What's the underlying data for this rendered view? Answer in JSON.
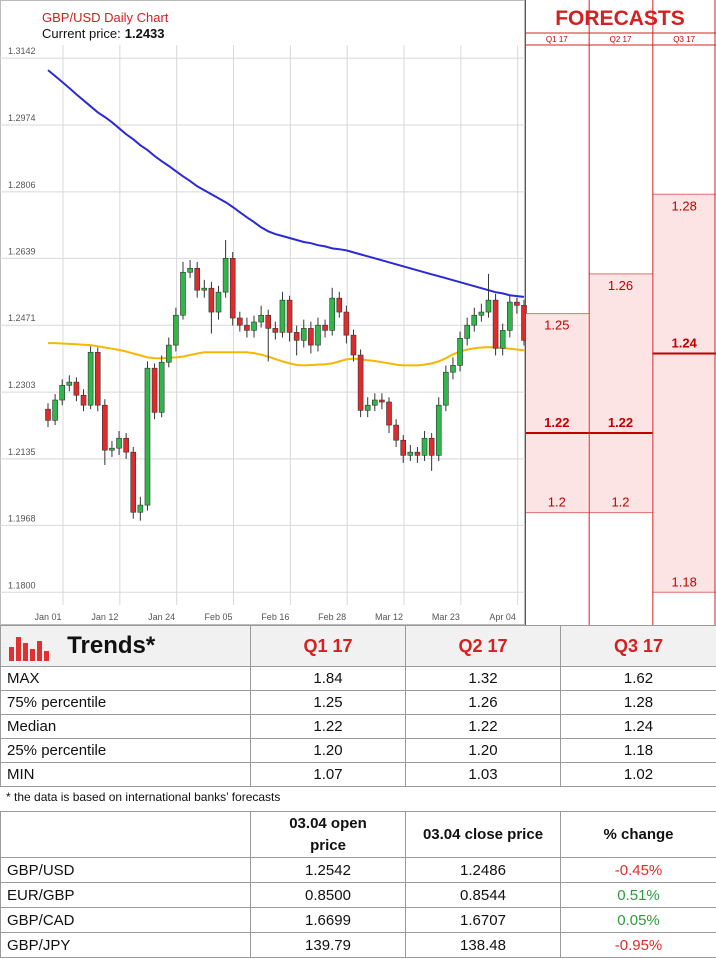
{
  "chart_data": {
    "type": "candlestick",
    "title": "GBP/USD Daily Chart",
    "current_price_label": "Current price:",
    "current_price": 1.2433,
    "categories": [
      "Jan 01",
      null,
      null,
      null,
      null,
      null,
      null,
      null,
      "Jan 12",
      null,
      null,
      null,
      null,
      null,
      null,
      null,
      "Jan 24",
      null,
      null,
      null,
      null,
      null,
      null,
      null,
      "Feb 05",
      null,
      null,
      null,
      null,
      null,
      null,
      null,
      "Feb 16",
      null,
      null,
      null,
      null,
      null,
      null,
      null,
      "Feb 28",
      null,
      null,
      null,
      null,
      null,
      null,
      null,
      "Mar 12",
      null,
      null,
      null,
      null,
      null,
      null,
      null,
      "Mar 23",
      null,
      null,
      null,
      null,
      null,
      null,
      null,
      "Apr 04",
      null,
      null,
      null
    ],
    "open": [
      1.226,
      1.2232,
      1.2283,
      1.232,
      1.2328,
      1.2295,
      1.227,
      1.2403,
      1.227,
      1.2157,
      1.2162,
      1.2187,
      1.2152,
      1.2001,
      1.2019,
      1.2363,
      1.2252,
      1.2378,
      1.2421,
      1.2496,
      1.2604,
      1.2614,
      1.2559,
      1.2564,
      1.2504,
      1.2554,
      1.2639,
      1.2489,
      1.2471,
      1.2458,
      1.2479,
      1.2496,
      1.2463,
      1.2453,
      1.2534,
      1.2453,
      1.2433,
      1.2463,
      1.2421,
      1.2471,
      1.2458,
      1.2539,
      1.2504,
      1.2446,
      1.2396,
      1.2257,
      1.227,
      1.2283,
      1.2278,
      1.222,
      1.2182,
      1.2144,
      1.2152,
      1.2144,
      1.2187,
      1.2144,
      1.227,
      1.2353,
      1.237,
      1.2438,
      1.2471,
      1.2496,
      1.2504,
      1.2534,
      1.2413,
      1.2458,
      1.2529,
      1.2521
    ],
    "high": [
      1.2275,
      1.2298,
      1.2335,
      1.2345,
      1.234,
      1.231,
      1.2418,
      1.2415,
      1.2285,
      1.218,
      1.2205,
      1.22,
      1.2165,
      1.204,
      1.238,
      1.2375,
      1.2395,
      1.244,
      1.2515,
      1.263,
      1.2635,
      1.263,
      1.2585,
      1.258,
      1.257,
      1.2685,
      1.2655,
      1.2505,
      1.249,
      1.2495,
      1.252,
      1.251,
      1.248,
      1.2555,
      1.2545,
      1.247,
      1.2485,
      1.248,
      1.249,
      1.2485,
      1.2565,
      1.2555,
      1.252,
      1.246,
      1.241,
      1.229,
      1.23,
      1.23,
      1.229,
      1.2235,
      1.2195,
      1.217,
      1.2165,
      1.2205,
      1.22,
      1.229,
      1.237,
      1.239,
      1.2455,
      1.249,
      1.2515,
      1.2525,
      1.26,
      1.255,
      1.2475,
      1.2545,
      1.254,
      1.2535
    ],
    "low": [
      1.2215,
      1.222,
      1.227,
      1.2305,
      1.228,
      1.2255,
      1.226,
      1.2255,
      1.212,
      1.214,
      1.2145,
      1.2135,
      1.1985,
      1.198,
      1.2005,
      1.2235,
      1.224,
      1.2365,
      1.2405,
      1.2485,
      1.259,
      1.254,
      1.254,
      1.245,
      1.2485,
      1.254,
      1.247,
      1.2455,
      1.244,
      1.244,
      1.2465,
      1.238,
      1.2435,
      1.244,
      1.243,
      1.2395,
      1.2415,
      1.24,
      1.2405,
      1.244,
      1.2445,
      1.249,
      1.2425,
      1.238,
      1.224,
      1.224,
      1.2255,
      1.226,
      1.22,
      1.2165,
      1.2125,
      1.213,
      1.2125,
      1.213,
      1.2105,
      1.213,
      1.2255,
      1.2335,
      1.2355,
      1.242,
      1.2455,
      1.248,
      1.249,
      1.2395,
      1.2395,
      1.244,
      1.25,
      1.242
    ],
    "close": [
      1.2232,
      1.2283,
      1.232,
      1.2328,
      1.2295,
      1.227,
      1.2403,
      1.227,
      1.2157,
      1.2162,
      1.2187,
      1.2152,
      1.2001,
      1.2019,
      1.2363,
      1.2252,
      1.2378,
      1.2421,
      1.2496,
      1.2604,
      1.2614,
      1.2559,
      1.2564,
      1.2504,
      1.2554,
      1.2639,
      1.2489,
      1.2471,
      1.2458,
      1.2479,
      1.2496,
      1.2463,
      1.2453,
      1.2534,
      1.2453,
      1.2433,
      1.2463,
      1.2421,
      1.2471,
      1.2458,
      1.2539,
      1.2504,
      1.2446,
      1.2396,
      1.2257,
      1.227,
      1.2283,
      1.2278,
      1.222,
      1.2182,
      1.2144,
      1.2152,
      1.2144,
      1.2187,
      1.2144,
      1.227,
      1.2353,
      1.237,
      1.2438,
      1.2471,
      1.2496,
      1.2504,
      1.2534,
      1.2413,
      1.2458,
      1.2529,
      1.2521,
      1.2433
    ],
    "up_color": "#2fb84a",
    "down_color": "#e02b2b",
    "lines": [
      {
        "color": "#2a2ad8",
        "values": [
          1.3112,
          1.3097,
          1.3082,
          1.3067,
          1.3051,
          1.3036,
          1.3021,
          1.3006,
          1.2994,
          1.2981,
          1.2966,
          1.2951,
          1.2938,
          1.2923,
          1.2911,
          1.2896,
          1.2883,
          1.2871,
          1.2858,
          1.2845,
          1.2833,
          1.282,
          1.281,
          1.28,
          1.279,
          1.278,
          1.2768,
          1.2755,
          1.2742,
          1.273,
          1.2717,
          1.2707,
          1.27,
          1.2695,
          1.269,
          1.2685,
          1.268,
          1.2677,
          1.2672,
          1.2669,
          1.2664,
          1.2662,
          1.2659,
          1.2654,
          1.2649,
          1.2644,
          1.2639,
          1.2634,
          1.2629,
          1.2624,
          1.2619,
          1.2614,
          1.2609,
          1.2604,
          1.2599,
          1.2594,
          1.2589,
          1.2584,
          1.2579,
          1.2574,
          1.2569,
          1.2564,
          1.2559,
          1.2554,
          1.2551,
          1.2546,
          1.2544,
          1.2542
        ]
      },
      {
        "color": "#f5b800",
        "values": [
          1.2426,
          1.2426,
          1.2425,
          1.2424,
          1.2423,
          1.2422,
          1.2421,
          1.2418,
          1.2415,
          1.2412,
          1.2409,
          1.2405,
          1.24,
          1.2395,
          1.239,
          1.2388,
          1.2388,
          1.2389,
          1.239,
          1.2392,
          1.2396,
          1.24,
          1.2403,
          1.2403,
          1.2403,
          1.2403,
          1.2403,
          1.2403,
          1.2403,
          1.2401,
          1.2397,
          1.2392,
          1.2386,
          1.238,
          1.2375,
          1.2371,
          1.237,
          1.2371,
          1.2372,
          1.2373,
          1.2375,
          1.238,
          1.2385,
          1.2387,
          1.2385,
          1.2383,
          1.2381,
          1.2378,
          1.2375,
          1.2372,
          1.237,
          1.237,
          1.237,
          1.2372,
          1.2375,
          1.238,
          1.2388,
          1.2398,
          1.2405,
          1.241,
          1.2413,
          1.2415,
          1.2416,
          1.2415,
          1.2414,
          1.2412,
          1.241,
          1.2408
        ]
      }
    ],
    "ylim": [
      1.1768,
      1.3175
    ],
    "yticks": [
      1.3142,
      1.2974,
      1.2806,
      1.2639,
      1.2471,
      1.2303,
      1.2135,
      1.1968,
      {
        "value": 1.18,
        "label": "1.1800"
      }
    ],
    "grid": true,
    "forecasts": {
      "title": "FORECASTS",
      "columns": [
        {
          "name": "Q1 17",
          "high": 1.25,
          "median": 1.22,
          "low": 1.2
        },
        {
          "name": "Q2 17",
          "high": 1.26,
          "median": 1.22,
          "low": 1.2
        },
        {
          "name": "Q3 17",
          "high": 1.28,
          "median": 1.24,
          "low": 1.18
        }
      ]
    }
  },
  "trends_table": {
    "title": "Trends*",
    "columns": [
      "Q1 17",
      "Q2 17",
      "Q3 17"
    ],
    "rows": [
      [
        "MAX",
        "1.84",
        "1.32",
        "1.62"
      ],
      [
        "75% percentile",
        "1.25",
        "1.26",
        "1.28"
      ],
      [
        "Median",
        "1.22",
        "1.22",
        "1.24"
      ],
      [
        "25% percentile",
        "1.20",
        "1.20",
        "1.18"
      ],
      [
        "MIN",
        "1.07",
        "1.03",
        "1.02"
      ]
    ]
  },
  "note": "* the data is based on international banks’ forecasts",
  "prices_table": {
    "columns": [
      "03.04 open price",
      "03.04 close price",
      "% change"
    ],
    "rows": [
      [
        "GBP/USD",
        "1.2542",
        "1.2486",
        "-0.45%"
      ],
      [
        "EUR/GBP",
        "0.8500",
        "0.8544",
        "0.51%"
      ],
      [
        "GBP/CAD",
        "1.6699",
        "1.6707",
        "0.05%"
      ],
      [
        "GBP/JPY",
        "139.79",
        "138.48",
        "-0.95%"
      ]
    ]
  }
}
